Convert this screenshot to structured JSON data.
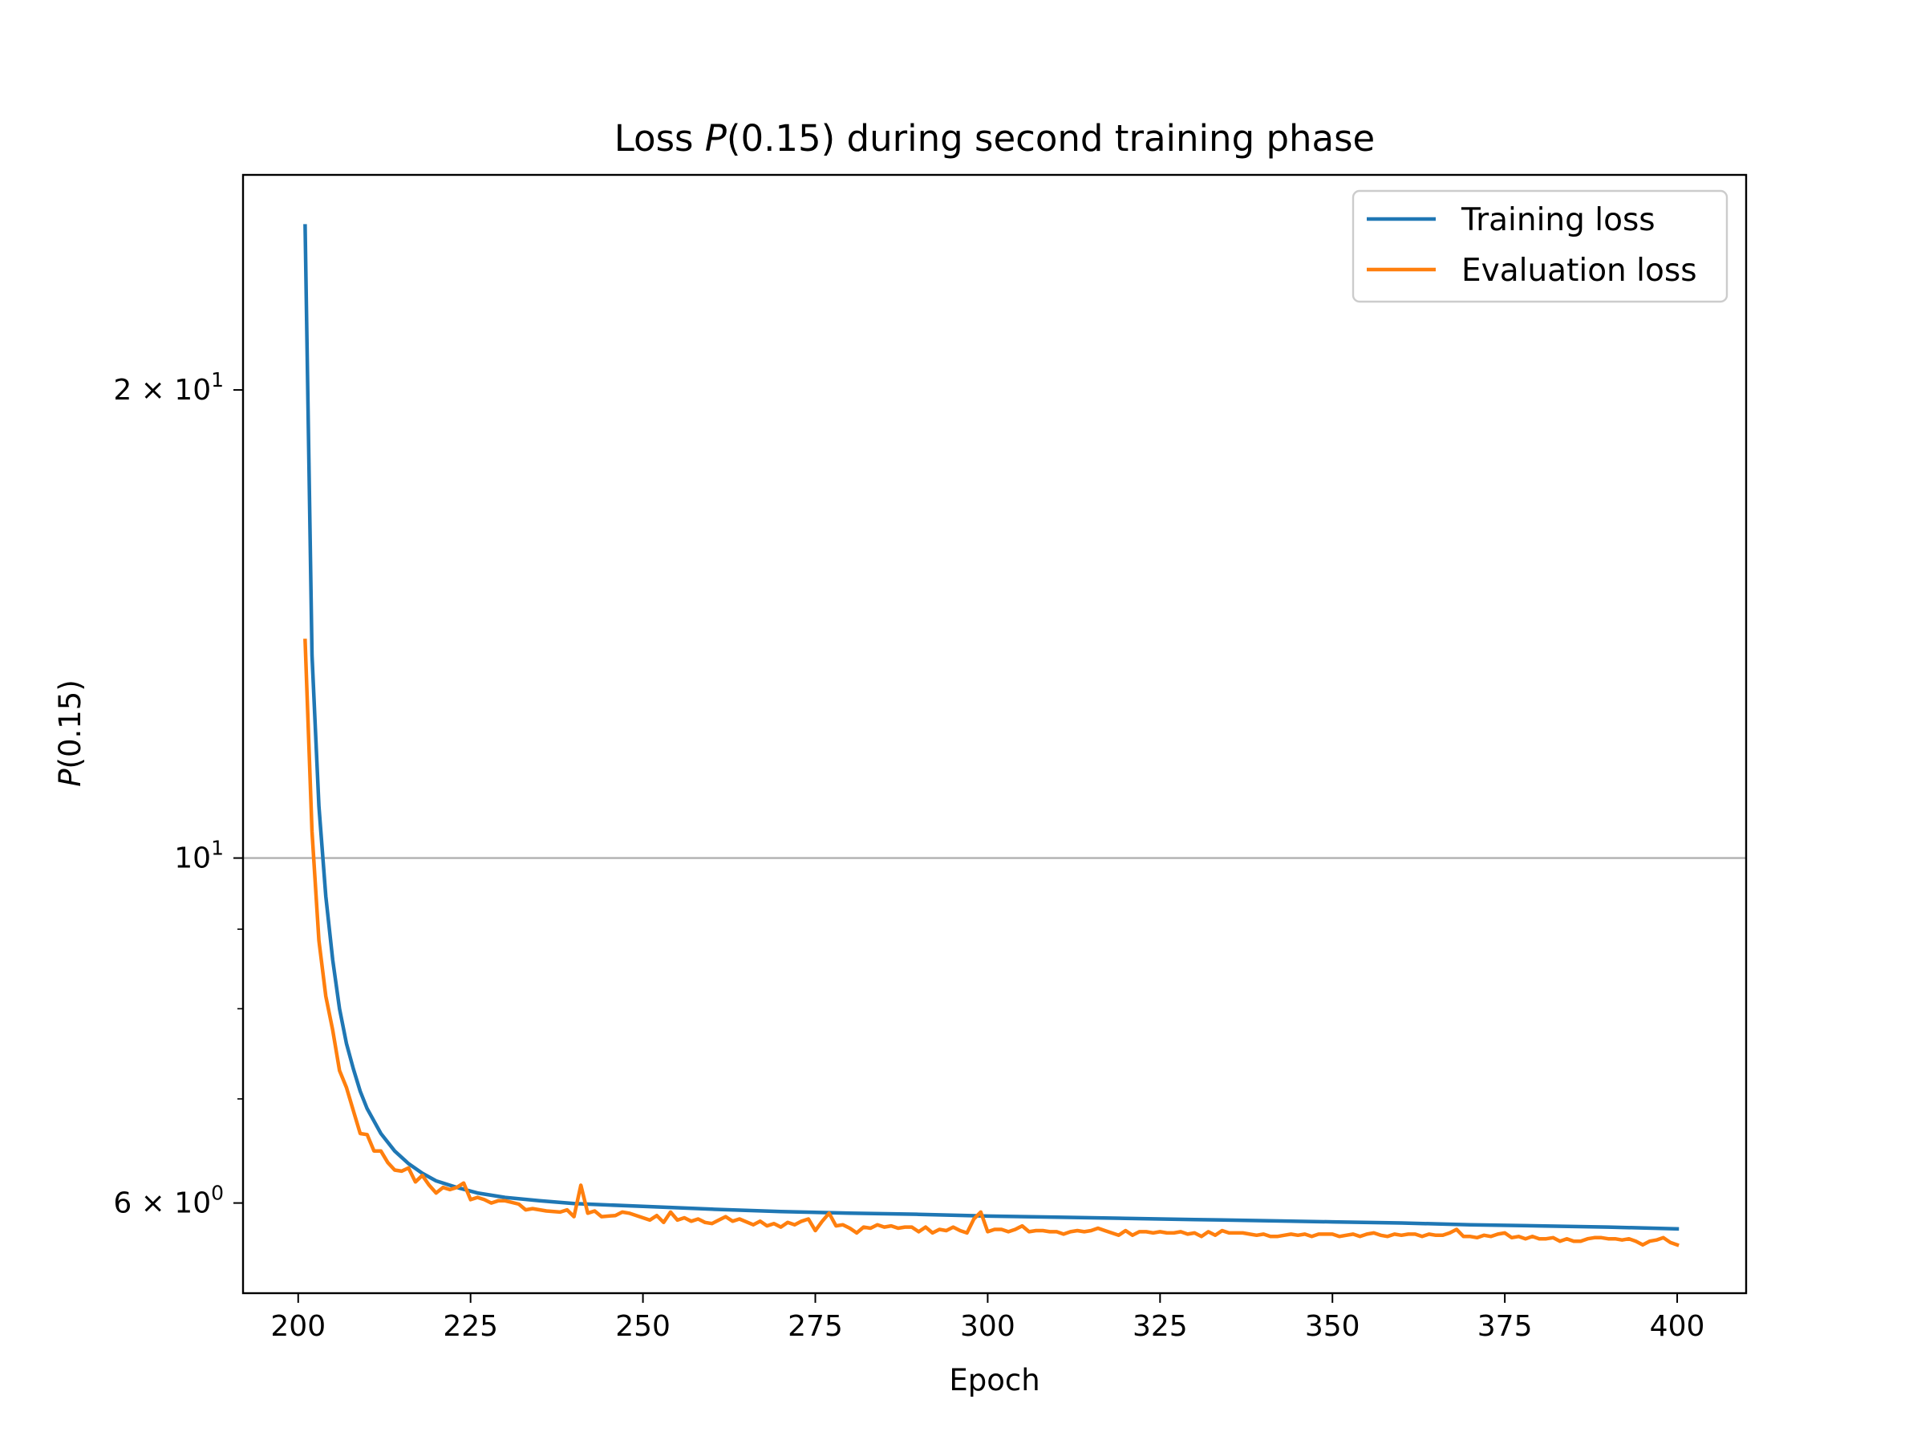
{
  "chart_data": {
    "type": "line",
    "title": {
      "pre": "Loss ",
      "var": "P",
      "post": "(0.15) during second training phase"
    },
    "xlabel": "Epoch",
    "ylabel": {
      "var": "P",
      "post": "(0.15)"
    },
    "xlim": [
      192,
      410
    ],
    "ylim": [
      5.25,
      27.5
    ],
    "yscale": "log",
    "xticks": [
      200,
      225,
      250,
      275,
      300,
      325,
      350,
      375,
      400
    ],
    "yticks": [
      {
        "value": 20,
        "mantissa": "2",
        "exponent": "1"
      },
      {
        "value": 10,
        "mantissa": "",
        "exponent": "1"
      },
      {
        "value": 6,
        "mantissa": "6",
        "exponent": "0"
      }
    ],
    "yminor": [
      7,
      8,
      9,
      30
    ],
    "grid": {
      "y_major": [
        10
      ]
    },
    "legend_position": "top-right",
    "series": [
      {
        "name": "Training loss",
        "color": "#1f77b4",
        "points": [
          [
            201,
            25.5
          ],
          [
            202,
            13.5
          ],
          [
            203,
            10.8
          ],
          [
            204,
            9.45
          ],
          [
            205,
            8.6
          ],
          [
            206,
            8.0
          ],
          [
            207,
            7.6
          ],
          [
            208,
            7.32
          ],
          [
            209,
            7.08
          ],
          [
            210,
            6.9
          ],
          [
            212,
            6.65
          ],
          [
            214,
            6.48
          ],
          [
            216,
            6.36
          ],
          [
            218,
            6.27
          ],
          [
            220,
            6.2
          ],
          [
            223,
            6.14
          ],
          [
            226,
            6.09
          ],
          [
            230,
            6.05
          ],
          [
            235,
            6.02
          ],
          [
            240,
            5.995
          ],
          [
            250,
            5.97
          ],
          [
            260,
            5.945
          ],
          [
            270,
            5.925
          ],
          [
            280,
            5.91
          ],
          [
            290,
            5.9
          ],
          [
            300,
            5.885
          ],
          [
            310,
            5.875
          ],
          [
            320,
            5.865
          ],
          [
            330,
            5.855
          ],
          [
            340,
            5.845
          ],
          [
            350,
            5.835
          ],
          [
            360,
            5.825
          ],
          [
            370,
            5.81
          ],
          [
            380,
            5.8
          ],
          [
            390,
            5.79
          ],
          [
            400,
            5.775
          ]
        ]
      },
      {
        "name": "Evaluation loss",
        "color": "#ff7f0e",
        "points": [
          [
            201,
            13.8
          ],
          [
            202,
            10.4
          ],
          [
            203,
            8.85
          ],
          [
            204,
            8.15
          ],
          [
            205,
            7.75
          ],
          [
            206,
            7.3
          ],
          [
            207,
            7.12
          ],
          [
            208,
            6.88
          ],
          [
            209,
            6.65
          ],
          [
            210,
            6.64
          ],
          [
            211,
            6.48
          ],
          [
            212,
            6.48
          ],
          [
            213,
            6.37
          ],
          [
            214,
            6.3
          ],
          [
            215,
            6.29
          ],
          [
            216,
            6.32
          ],
          [
            217,
            6.19
          ],
          [
            218,
            6.25
          ],
          [
            219,
            6.16
          ],
          [
            220,
            6.09
          ],
          [
            221,
            6.14
          ],
          [
            222,
            6.12
          ],
          [
            223,
            6.14
          ],
          [
            224,
            6.18
          ],
          [
            225,
            6.03
          ],
          [
            226,
            6.05
          ],
          [
            227,
            6.03
          ],
          [
            228,
            6.0
          ],
          [
            229,
            6.02
          ],
          [
            230,
            6.02
          ],
          [
            232,
            5.99
          ],
          [
            233,
            5.94
          ],
          [
            234,
            5.95
          ],
          [
            236,
            5.93
          ],
          [
            238,
            5.92
          ],
          [
            239,
            5.94
          ],
          [
            240,
            5.88
          ],
          [
            241,
            6.16
          ],
          [
            242,
            5.91
          ],
          [
            243,
            5.93
          ],
          [
            244,
            5.88
          ],
          [
            246,
            5.89
          ],
          [
            247,
            5.92
          ],
          [
            248,
            5.91
          ],
          [
            250,
            5.87
          ],
          [
            251,
            5.85
          ],
          [
            252,
            5.89
          ],
          [
            253,
            5.83
          ],
          [
            254,
            5.92
          ],
          [
            255,
            5.85
          ],
          [
            256,
            5.87
          ],
          [
            257,
            5.84
          ],
          [
            258,
            5.86
          ],
          [
            259,
            5.83
          ],
          [
            260,
            5.82
          ],
          [
            261,
            5.85
          ],
          [
            262,
            5.88
          ],
          [
            263,
            5.84
          ],
          [
            264,
            5.86
          ],
          [
            266,
            5.81
          ],
          [
            267,
            5.84
          ],
          [
            268,
            5.8
          ],
          [
            269,
            5.82
          ],
          [
            270,
            5.79
          ],
          [
            271,
            5.83
          ],
          [
            272,
            5.81
          ],
          [
            273,
            5.84
          ],
          [
            274,
            5.86
          ],
          [
            275,
            5.76
          ],
          [
            276,
            5.84
          ],
          [
            277,
            5.91
          ],
          [
            278,
            5.8
          ],
          [
            279,
            5.81
          ],
          [
            280,
            5.78
          ],
          [
            281,
            5.74
          ],
          [
            282,
            5.79
          ],
          [
            283,
            5.78
          ],
          [
            284,
            5.81
          ],
          [
            285,
            5.79
          ],
          [
            286,
            5.8
          ],
          [
            287,
            5.78
          ],
          [
            288,
            5.79
          ],
          [
            289,
            5.79
          ],
          [
            290,
            5.75
          ],
          [
            291,
            5.79
          ],
          [
            292,
            5.74
          ],
          [
            293,
            5.77
          ],
          [
            294,
            5.76
          ],
          [
            295,
            5.79
          ],
          [
            296,
            5.76
          ],
          [
            297,
            5.74
          ],
          [
            298,
            5.86
          ],
          [
            299,
            5.92
          ],
          [
            300,
            5.75
          ],
          [
            301,
            5.77
          ],
          [
            302,
            5.77
          ],
          [
            303,
            5.75
          ],
          [
            304,
            5.77
          ],
          [
            305,
            5.8
          ],
          [
            306,
            5.75
          ],
          [
            307,
            5.76
          ],
          [
            308,
            5.76
          ],
          [
            309,
            5.75
          ],
          [
            310,
            5.75
          ],
          [
            311,
            5.73
          ],
          [
            312,
            5.75
          ],
          [
            313,
            5.76
          ],
          [
            314,
            5.75
          ],
          [
            315,
            5.76
          ],
          [
            316,
            5.78
          ],
          [
            317,
            5.76
          ],
          [
            318,
            5.74
          ],
          [
            319,
            5.72
          ],
          [
            320,
            5.76
          ],
          [
            321,
            5.72
          ],
          [
            322,
            5.75
          ],
          [
            323,
            5.75
          ],
          [
            324,
            5.74
          ],
          [
            325,
            5.75
          ],
          [
            326,
            5.74
          ],
          [
            327,
            5.74
          ],
          [
            328,
            5.75
          ],
          [
            329,
            5.73
          ],
          [
            330,
            5.74
          ],
          [
            331,
            5.71
          ],
          [
            332,
            5.75
          ],
          [
            333,
            5.72
          ],
          [
            334,
            5.76
          ],
          [
            335,
            5.74
          ],
          [
            336,
            5.74
          ],
          [
            337,
            5.74
          ],
          [
            338,
            5.73
          ],
          [
            339,
            5.72
          ],
          [
            340,
            5.73
          ],
          [
            341,
            5.71
          ],
          [
            342,
            5.71
          ],
          [
            343,
            5.72
          ],
          [
            344,
            5.73
          ],
          [
            345,
            5.72
          ],
          [
            346,
            5.73
          ],
          [
            347,
            5.71
          ],
          [
            348,
            5.73
          ],
          [
            349,
            5.73
          ],
          [
            350,
            5.73
          ],
          [
            351,
            5.71
          ],
          [
            352,
            5.72
          ],
          [
            353,
            5.73
          ],
          [
            354,
            5.71
          ],
          [
            355,
            5.73
          ],
          [
            356,
            5.74
          ],
          [
            357,
            5.72
          ],
          [
            358,
            5.71
          ],
          [
            359,
            5.73
          ],
          [
            360,
            5.72
          ],
          [
            361,
            5.73
          ],
          [
            362,
            5.73
          ],
          [
            363,
            5.71
          ],
          [
            364,
            5.73
          ],
          [
            365,
            5.72
          ],
          [
            366,
            5.72
          ],
          [
            367,
            5.74
          ],
          [
            368,
            5.77
          ],
          [
            369,
            5.71
          ],
          [
            370,
            5.71
          ],
          [
            371,
            5.7
          ],
          [
            372,
            5.72
          ],
          [
            373,
            5.71
          ],
          [
            374,
            5.73
          ],
          [
            375,
            5.74
          ],
          [
            376,
            5.7
          ],
          [
            377,
            5.71
          ],
          [
            378,
            5.69
          ],
          [
            379,
            5.71
          ],
          [
            380,
            5.69
          ],
          [
            381,
            5.69
          ],
          [
            382,
            5.7
          ],
          [
            383,
            5.67
          ],
          [
            384,
            5.69
          ],
          [
            385,
            5.67
          ],
          [
            386,
            5.67
          ],
          [
            387,
            5.69
          ],
          [
            388,
            5.7
          ],
          [
            389,
            5.7
          ],
          [
            390,
            5.69
          ],
          [
            391,
            5.69
          ],
          [
            392,
            5.68
          ],
          [
            393,
            5.69
          ],
          [
            394,
            5.67
          ],
          [
            395,
            5.64
          ],
          [
            396,
            5.67
          ],
          [
            397,
            5.68
          ],
          [
            398,
            5.7
          ],
          [
            399,
            5.66
          ],
          [
            400,
            5.64
          ]
        ]
      }
    ]
  }
}
